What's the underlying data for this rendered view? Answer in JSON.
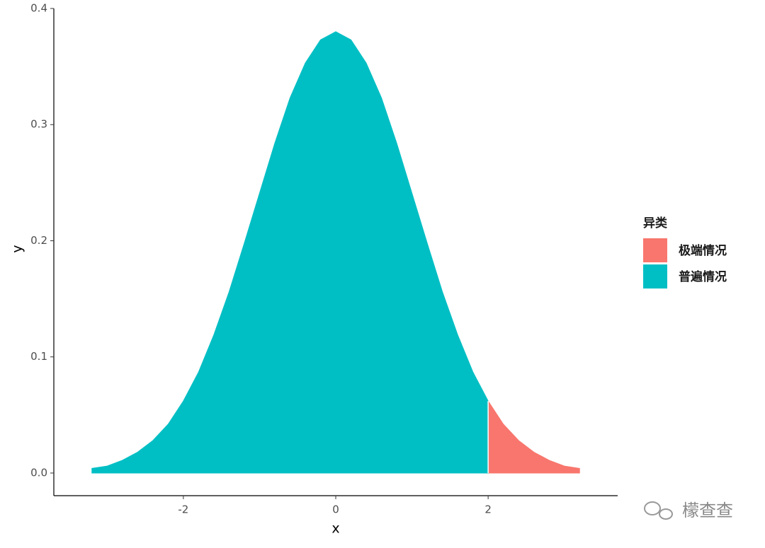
{
  "chart_data": {
    "type": "area",
    "x_label": "x",
    "y_label": "y",
    "legend_title": "异类",
    "legend_position": "right",
    "series": [
      {
        "name": "极端情况",
        "color": "#F8766D",
        "x": [
          2.0,
          2.2,
          2.4,
          2.6,
          2.8,
          3.0,
          3.2
        ],
        "values": [
          0.062,
          0.042,
          0.028,
          0.018,
          0.011,
          0.006,
          0.004
        ]
      },
      {
        "name": "普遍情况",
        "color": "#00BFC4",
        "x": [
          -3.2,
          -3.0,
          -2.8,
          -2.6,
          -2.4,
          -2.2,
          -2.0,
          -1.8,
          -1.6,
          -1.4,
          -1.2,
          -1.0,
          -0.8,
          -0.6,
          -0.4,
          -0.2,
          0.0,
          0.2,
          0.4,
          0.6,
          0.8,
          1.0,
          1.2,
          1.4,
          1.6,
          1.8,
          2.0
        ],
        "values": [
          0.004,
          0.006,
          0.011,
          0.018,
          0.028,
          0.042,
          0.062,
          0.087,
          0.119,
          0.156,
          0.198,
          0.241,
          0.284,
          0.323,
          0.353,
          0.373,
          0.38,
          0.373,
          0.353,
          0.323,
          0.284,
          0.241,
          0.198,
          0.156,
          0.119,
          0.087,
          0.062
        ]
      }
    ],
    "xlim": [
      -3.7,
      3.7
    ],
    "xticks": [
      -2,
      0,
      2
    ],
    "ylim": [
      -0.0195,
      0.4
    ],
    "yticks": [
      {
        "value": 0,
        "label": "0.0"
      },
      0.1,
      0.2,
      0.3,
      0.4
    ],
    "watermark": "檬查查"
  }
}
